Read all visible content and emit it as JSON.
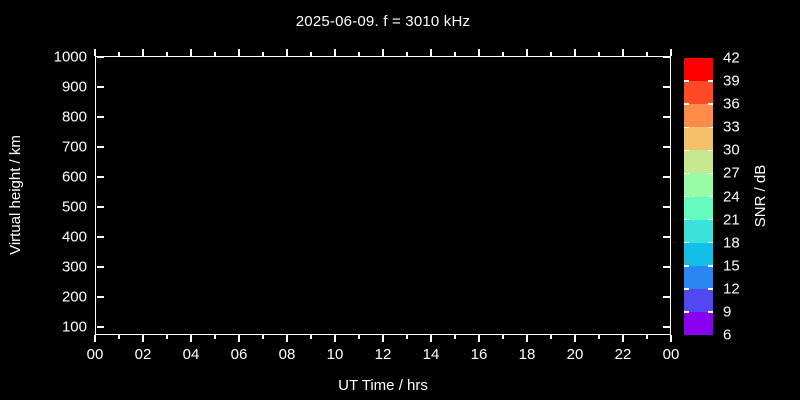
{
  "chart_data": {
    "type": "heatmap",
    "title": "2025-06-09. f = 3010 kHz",
    "xlabel": "UT Time / hrs",
    "ylabel": "Virtual height / km",
    "x_tick_labels": [
      "00",
      "02",
      "04",
      "06",
      "08",
      "10",
      "12",
      "14",
      "16",
      "18",
      "20",
      "22",
      "00"
    ],
    "x_major_interval_hrs": 2,
    "x_minor_interval_hrs": 1,
    "xlim_hrs": [
      0,
      24
    ],
    "y_tick_values": [
      1000,
      900,
      800,
      700,
      600,
      500,
      400,
      300,
      200,
      100
    ],
    "ylim": [
      73,
      1003
    ],
    "grid": false,
    "points": [],
    "background_color": "#000000",
    "axis_color": "#ffffff",
    "text_color": "#ffffff",
    "colorbar": {
      "label": "SNR / dB",
      "tick_values": [
        42,
        39,
        36,
        33,
        30,
        27,
        24,
        21,
        18,
        15,
        12,
        9,
        6
      ],
      "segments": [
        {
          "range": [
            39,
            42
          ],
          "color": "#fe0000"
        },
        {
          "range": [
            36,
            39
          ],
          "color": "#ff4a26"
        },
        {
          "range": [
            33,
            36
          ],
          "color": "#ff8c49"
        },
        {
          "range": [
            30,
            33
          ],
          "color": "#f2c169"
        },
        {
          "range": [
            27,
            30
          ],
          "color": "#c6e88e"
        },
        {
          "range": [
            24,
            27
          ],
          "color": "#98fba5"
        },
        {
          "range": [
            21,
            24
          ],
          "color": "#65fbbe"
        },
        {
          "range": [
            18,
            21
          ],
          "color": "#3be3da"
        },
        {
          "range": [
            15,
            18
          ],
          "color": "#11bfe9"
        },
        {
          "range": [
            12,
            15
          ],
          "color": "#2986f2"
        },
        {
          "range": [
            9,
            12
          ],
          "color": "#5347f2"
        },
        {
          "range": [
            6,
            9
          ],
          "color": "#8a00f1"
        }
      ]
    }
  }
}
